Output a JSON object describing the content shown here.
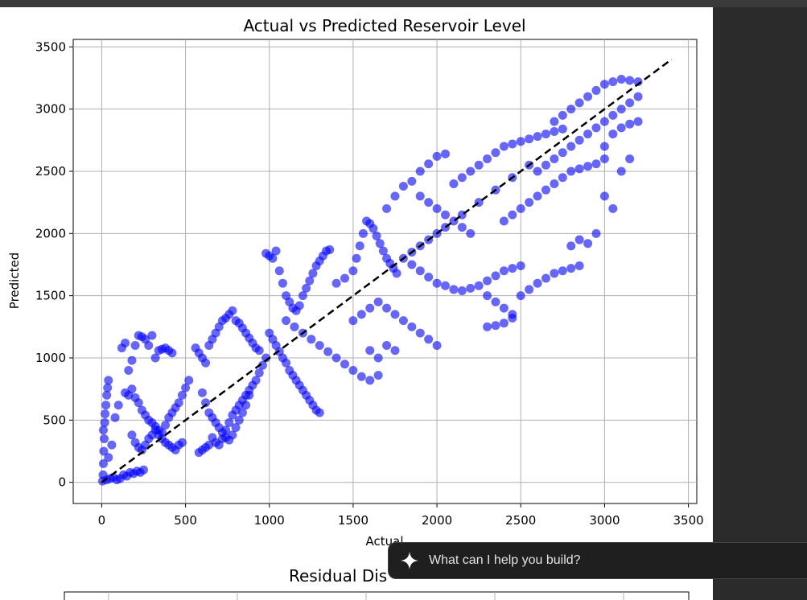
{
  "chart_data": [
    {
      "type": "scatter",
      "title": "Actual vs Predicted Reservoir Level",
      "xlabel": "Actual",
      "ylabel": "Predicted",
      "xlim": [
        -170,
        3550
      ],
      "ylim": [
        -170,
        3560
      ],
      "xticks": [
        0,
        500,
        1000,
        1500,
        2000,
        2500,
        3000,
        3500
      ],
      "yticks": [
        0,
        500,
        1000,
        1500,
        2000,
        2500,
        3000,
        3500
      ],
      "grid": true,
      "point_color": "#0000ff",
      "reference_line": {
        "x": [
          0,
          3400
        ],
        "y": [
          0,
          3400
        ],
        "style": "dashed",
        "color": "#000000"
      },
      "points": [
        [
          5,
          10
        ],
        [
          8,
          60
        ],
        [
          10,
          150
        ],
        [
          12,
          250
        ],
        [
          15,
          350
        ],
        [
          10,
          420
        ],
        [
          18,
          480
        ],
        [
          20,
          550
        ],
        [
          25,
          620
        ],
        [
          30,
          700
        ],
        [
          35,
          760
        ],
        [
          40,
          820
        ],
        [
          30,
          20
        ],
        [
          50,
          30
        ],
        [
          70,
          40
        ],
        [
          90,
          20
        ],
        [
          110,
          30
        ],
        [
          130,
          60
        ],
        [
          150,
          50
        ],
        [
          170,
          80
        ],
        [
          190,
          70
        ],
        [
          210,
          90
        ],
        [
          230,
          80
        ],
        [
          250,
          100
        ],
        [
          40,
          200
        ],
        [
          60,
          300
        ],
        [
          80,
          520
        ],
        [
          100,
          620
        ],
        [
          120,
          1080
        ],
        [
          140,
          1120
        ],
        [
          160,
          900
        ],
        [
          180,
          980
        ],
        [
          200,
          1100
        ],
        [
          220,
          1180
        ],
        [
          240,
          1170
        ],
        [
          260,
          1150
        ],
        [
          280,
          1100
        ],
        [
          300,
          1180
        ],
        [
          320,
          1000
        ],
        [
          340,
          1060
        ],
        [
          360,
          1070
        ],
        [
          380,
          1080
        ],
        [
          400,
          1060
        ],
        [
          420,
          1040
        ],
        [
          140,
          720
        ],
        [
          160,
          700
        ],
        [
          180,
          750
        ],
        [
          200,
          680
        ],
        [
          220,
          640
        ],
        [
          240,
          580
        ],
        [
          260,
          540
        ],
        [
          280,
          500
        ],
        [
          300,
          480
        ],
        [
          320,
          450
        ],
        [
          340,
          420
        ],
        [
          360,
          400
        ],
        [
          380,
          460
        ],
        [
          400,
          520
        ],
        [
          420,
          560
        ],
        [
          440,
          600
        ],
        [
          460,
          640
        ],
        [
          480,
          700
        ],
        [
          500,
          760
        ],
        [
          520,
          820
        ],
        [
          180,
          380
        ],
        [
          200,
          320
        ],
        [
          220,
          280
        ],
        [
          240,
          260
        ],
        [
          260,
          300
        ],
        [
          280,
          350
        ],
        [
          300,
          380
        ],
        [
          320,
          420
        ],
        [
          340,
          380
        ],
        [
          360,
          350
        ],
        [
          380,
          320
        ],
        [
          400,
          300
        ],
        [
          420,
          280
        ],
        [
          440,
          260
        ],
        [
          460,
          300
        ],
        [
          480,
          320
        ],
        [
          560,
          1080
        ],
        [
          580,
          1040
        ],
        [
          600,
          1000
        ],
        [
          620,
          960
        ],
        [
          640,
          1100
        ],
        [
          660,
          1150
        ],
        [
          680,
          1200
        ],
        [
          700,
          1250
        ],
        [
          720,
          1300
        ],
        [
          740,
          1320
        ],
        [
          760,
          1350
        ],
        [
          780,
          1380
        ],
        [
          800,
          1300
        ],
        [
          820,
          1280
        ],
        [
          840,
          1240
        ],
        [
          860,
          1200
        ],
        [
          880,
          1160
        ],
        [
          900,
          1120
        ],
        [
          920,
          1080
        ],
        [
          940,
          1060
        ],
        [
          600,
          720
        ],
        [
          620,
          640
        ],
        [
          640,
          560
        ],
        [
          660,
          520
        ],
        [
          680,
          480
        ],
        [
          700,
          440
        ],
        [
          720,
          400
        ],
        [
          740,
          360
        ],
        [
          760,
          340
        ],
        [
          780,
          380
        ],
        [
          800,
          440
        ],
        [
          820,
          500
        ],
        [
          840,
          560
        ],
        [
          860,
          620
        ],
        [
          880,
          700
        ],
        [
          900,
          780
        ],
        [
          920,
          820
        ],
        [
          940,
          880
        ],
        [
          960,
          940
        ],
        [
          980,
          1000
        ],
        [
          580,
          240
        ],
        [
          600,
          260
        ],
        [
          620,
          280
        ],
        [
          640,
          300
        ],
        [
          660,
          360
        ],
        [
          680,
          320
        ],
        [
          700,
          300
        ],
        [
          720,
          350
        ],
        [
          740,
          420
        ],
        [
          760,
          480
        ],
        [
          780,
          540
        ],
        [
          800,
          580
        ],
        [
          820,
          620
        ],
        [
          840,
          660
        ],
        [
          860,
          700
        ],
        [
          880,
          740
        ],
        [
          980,
          1840
        ],
        [
          1000,
          1820
        ],
        [
          1020,
          1800
        ],
        [
          1040,
          1860
        ],
        [
          1060,
          1700
        ],
        [
          1080,
          1600
        ],
        [
          1100,
          1500
        ],
        [
          1120,
          1450
        ],
        [
          1140,
          1400
        ],
        [
          1160,
          1380
        ],
        [
          1180,
          1420
        ],
        [
          1200,
          1500
        ],
        [
          1220,
          1560
        ],
        [
          1240,
          1620
        ],
        [
          1260,
          1680
        ],
        [
          1280,
          1740
        ],
        [
          1300,
          1780
        ],
        [
          1320,
          1820
        ],
        [
          1340,
          1860
        ],
        [
          1360,
          1870
        ],
        [
          1000,
          1200
        ],
        [
          1020,
          1150
        ],
        [
          1040,
          1100
        ],
        [
          1060,
          1050
        ],
        [
          1080,
          1000
        ],
        [
          1100,
          960
        ],
        [
          1120,
          900
        ],
        [
          1140,
          860
        ],
        [
          1160,
          820
        ],
        [
          1180,
          780
        ],
        [
          1200,
          740
        ],
        [
          1220,
          700
        ],
        [
          1240,
          660
        ],
        [
          1260,
          620
        ],
        [
          1280,
          580
        ],
        [
          1300,
          560
        ],
        [
          1100,
          1300
        ],
        [
          1150,
          1250
        ],
        [
          1200,
          1200
        ],
        [
          1250,
          1150
        ],
        [
          1300,
          1100
        ],
        [
          1350,
          1050
        ],
        [
          1400,
          1000
        ],
        [
          1450,
          950
        ],
        [
          1500,
          900
        ],
        [
          1550,
          850
        ],
        [
          1600,
          820
        ],
        [
          1650,
          860
        ],
        [
          1400,
          1600
        ],
        [
          1450,
          1640
        ],
        [
          1500,
          1700
        ],
        [
          1520,
          1800
        ],
        [
          1540,
          1900
        ],
        [
          1560,
          2000
        ],
        [
          1580,
          2100
        ],
        [
          1600,
          2080
        ],
        [
          1620,
          2040
        ],
        [
          1640,
          1980
        ],
        [
          1660,
          1920
        ],
        [
          1680,
          1860
        ],
        [
          1700,
          1800
        ],
        [
          1720,
          1760
        ],
        [
          1740,
          1720
        ],
        [
          1760,
          1680
        ],
        [
          1500,
          1300
        ],
        [
          1550,
          1350
        ],
        [
          1600,
          1400
        ],
        [
          1650,
          1450
        ],
        [
          1700,
          1400
        ],
        [
          1750,
          1350
        ],
        [
          1800,
          1300
        ],
        [
          1850,
          1250
        ],
        [
          1900,
          1200
        ],
        [
          1950,
          1150
        ],
        [
          2000,
          1100
        ],
        [
          1700,
          1100
        ],
        [
          1750,
          1060
        ],
        [
          1650,
          1000
        ],
        [
          1600,
          1060
        ],
        [
          1700,
          2200
        ],
        [
          1750,
          2300
        ],
        [
          1800,
          2380
        ],
        [
          1850,
          2420
        ],
        [
          1900,
          2500
        ],
        [
          1950,
          2560
        ],
        [
          2000,
          2620
        ],
        [
          2050,
          2640
        ],
        [
          1900,
          2300
        ],
        [
          1950,
          2250
        ],
        [
          2000,
          2200
        ],
        [
          2050,
          2150
        ],
        [
          2100,
          2100
        ],
        [
          2150,
          2050
        ],
        [
          2200,
          2000
        ],
        [
          1800,
          1800
        ],
        [
          1850,
          1750
        ],
        [
          1900,
          1700
        ],
        [
          1950,
          1650
        ],
        [
          2000,
          1600
        ],
        [
          2050,
          1580
        ],
        [
          2100,
          1550
        ],
        [
          2150,
          1540
        ],
        [
          2200,
          1560
        ],
        [
          2250,
          1580
        ],
        [
          2300,
          1620
        ],
        [
          2350,
          1660
        ],
        [
          2400,
          1700
        ],
        [
          2450,
          1720
        ],
        [
          2500,
          1740
        ],
        [
          2100,
          2400
        ],
        [
          2150,
          2450
        ],
        [
          2200,
          2500
        ],
        [
          2250,
          2550
        ],
        [
          2300,
          2600
        ],
        [
          2350,
          2650
        ],
        [
          2400,
          2700
        ],
        [
          2450,
          2720
        ],
        [
          2500,
          2740
        ],
        [
          2550,
          2760
        ],
        [
          2600,
          2780
        ],
        [
          2650,
          2800
        ],
        [
          2700,
          2820
        ],
        [
          2750,
          2840
        ],
        [
          2300,
          1500
        ],
        [
          2350,
          1450
        ],
        [
          2400,
          1400
        ],
        [
          2450,
          1350
        ],
        [
          2300,
          1250
        ],
        [
          2350,
          1260
        ],
        [
          2400,
          1280
        ],
        [
          2450,
          1320
        ],
        [
          2500,
          1500
        ],
        [
          2550,
          1550
        ],
        [
          2600,
          1600
        ],
        [
          2650,
          1640
        ],
        [
          2700,
          1680
        ],
        [
          2750,
          1700
        ],
        [
          2800,
          1720
        ],
        [
          2850,
          1740
        ],
        [
          2400,
          2100
        ],
        [
          2450,
          2150
        ],
        [
          2500,
          2200
        ],
        [
          2550,
          2250
        ],
        [
          2600,
          2300
        ],
        [
          2650,
          2350
        ],
        [
          2700,
          2400
        ],
        [
          2750,
          2450
        ],
        [
          2800,
          2500
        ],
        [
          2850,
          2520
        ],
        [
          2900,
          2540
        ],
        [
          2950,
          2560
        ],
        [
          3000,
          2600
        ],
        [
          2600,
          2500
        ],
        [
          2650,
          2550
        ],
        [
          2700,
          2600
        ],
        [
          2750,
          2650
        ],
        [
          2800,
          2700
        ],
        [
          2850,
          2750
        ],
        [
          2900,
          2800
        ],
        [
          2950,
          2850
        ],
        [
          3000,
          2900
        ],
        [
          3050,
          2950
        ],
        [
          3100,
          3000
        ],
        [
          3150,
          3050
        ],
        [
          3200,
          3100
        ],
        [
          2700,
          2900
        ],
        [
          2750,
          2950
        ],
        [
          2800,
          3000
        ],
        [
          2850,
          3050
        ],
        [
          2900,
          3100
        ],
        [
          2950,
          3150
        ],
        [
          3000,
          3200
        ],
        [
          3050,
          3220
        ],
        [
          3100,
          3240
        ],
        [
          3150,
          3230
        ],
        [
          3200,
          3220
        ],
        [
          2800,
          1900
        ],
        [
          2850,
          1950
        ],
        [
          2900,
          1920
        ],
        [
          2950,
          2000
        ],
        [
          3000,
          2300
        ],
        [
          3050,
          2200
        ],
        [
          3100,
          2500
        ],
        [
          3150,
          2600
        ],
        [
          3000,
          2700
        ],
        [
          3050,
          2800
        ],
        [
          3100,
          2850
        ],
        [
          3150,
          2880
        ],
        [
          3200,
          2900
        ],
        [
          2000,
          2000
        ],
        [
          2050,
          2050
        ],
        [
          1900,
          1900
        ],
        [
          1850,
          1850
        ],
        [
          1950,
          1950
        ],
        [
          2150,
          2150
        ],
        [
          2250,
          2250
        ],
        [
          2350,
          2350
        ],
        [
          2450,
          2450
        ],
        [
          2550,
          2550
        ]
      ]
    },
    {
      "type": "bar",
      "title": "Residual Distribution",
      "visible_title": "Residual Dis"
    }
  ],
  "assistant": {
    "prompt_placeholder": "What can I help you build?",
    "icon": "sparkle-icon"
  }
}
